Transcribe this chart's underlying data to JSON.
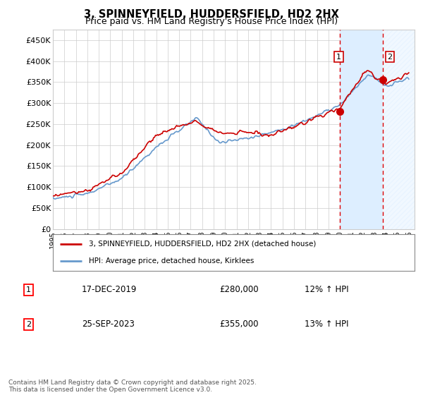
{
  "title": "3, SPINNEYFIELD, HUDDERSFIELD, HD2 2HX",
  "subtitle": "Price paid vs. HM Land Registry's House Price Index (HPI)",
  "title_fontsize": 10.5,
  "subtitle_fontsize": 9,
  "ylim": [
    0,
    475000
  ],
  "yticks": [
    0,
    50000,
    100000,
    150000,
    200000,
    250000,
    300000,
    350000,
    400000,
    450000
  ],
  "ytick_labels": [
    "£0",
    "£50K",
    "£100K",
    "£150K",
    "£200K",
    "£250K",
    "£300K",
    "£350K",
    "£400K",
    "£450K"
  ],
  "xlim_start": 1995.0,
  "xlim_end": 2026.5,
  "vline1_x": 2020.0,
  "vline2_x": 2023.75,
  "vline1_color": "#dd0000",
  "vline2_color": "#dd0000",
  "shade_color": "#ddeeff",
  "red_line_color": "#cc0000",
  "blue_line_color": "#6699cc",
  "grid_color": "#cccccc",
  "bg_color": "#ffffff",
  "legend_label_red": "3, SPINNEYFIELD, HUDDERSFIELD, HD2 2HX (detached house)",
  "legend_label_blue": "HPI: Average price, detached house, Kirklees",
  "annotation1_date": "17-DEC-2019",
  "annotation1_price": "£280,000",
  "annotation1_hpi": "12% ↑ HPI",
  "annotation2_date": "25-SEP-2023",
  "annotation2_price": "£355,000",
  "annotation2_hpi": "13% ↑ HPI",
  "footer": "Contains HM Land Registry data © Crown copyright and database right 2025.\nThis data is licensed under the Open Government Licence v3.0.",
  "sale1_x": 2020.0,
  "sale1_y": 280000,
  "sale2_x": 2023.75,
  "sale2_y": 355000
}
